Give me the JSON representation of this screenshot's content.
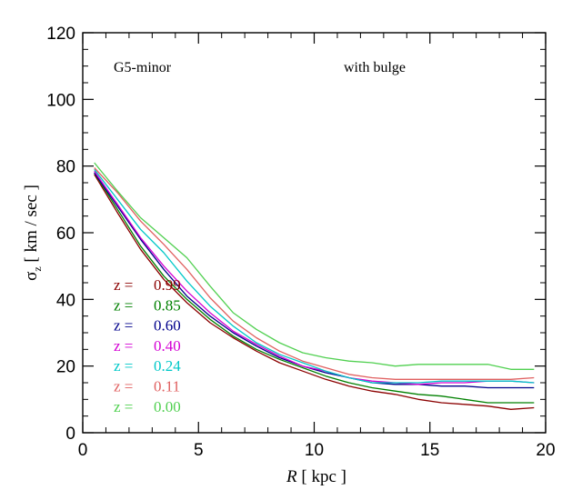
{
  "chart_data": {
    "type": "line",
    "title": "",
    "xlabel": "R [ kpc ]",
    "xlabel_italic_part": "R",
    "xlabel_rest": " [ kpc ]",
    "ylabel": "σz [ km / sec ]",
    "ylabel_symbol": "σ",
    "ylabel_subscript": "z",
    "ylabel_rest": " [ km / sec ]",
    "xlim": [
      0,
      20
    ],
    "ylim": [
      0,
      120
    ],
    "xticks": [
      0,
      5,
      10,
      15,
      20
    ],
    "yticks": [
      0,
      20,
      40,
      60,
      80,
      100,
      120
    ],
    "grid": false,
    "legend_placement": "lower-left",
    "annotations": [
      {
        "id": "model",
        "text": "G5-minor"
      },
      {
        "id": "variant",
        "text": "with bulge"
      }
    ],
    "x": [
      0.5,
      1.5,
      2.5,
      3.5,
      4.5,
      5.5,
      6.5,
      7.5,
      8.5,
      9.5,
      10.5,
      11.5,
      12.5,
      13.5,
      14.5,
      15.5,
      16.5,
      17.5,
      18.5,
      19.5
    ],
    "series": [
      {
        "name": "z = 0.99",
        "label_prefix": "z =",
        "label_value": "0.99",
        "color": "#8b0000",
        "values": [
          77.5,
          66,
          55,
          46,
          39,
          33,
          28.5,
          24.5,
          21,
          18.5,
          16,
          14,
          12.5,
          11.5,
          10,
          9,
          8.5,
          8,
          7,
          7.5
        ]
      },
      {
        "name": "z = 0.85",
        "label_prefix": "z =",
        "label_value": "0.85",
        "color": "#008000",
        "values": [
          78,
          67,
          56,
          47,
          40,
          34,
          29,
          25,
          22,
          19.5,
          17,
          15,
          13.5,
          12.5,
          11.5,
          11,
          10,
          9,
          9,
          9
        ]
      },
      {
        "name": "z = 0.60",
        "label_prefix": "z =",
        "label_value": "0.60",
        "color": "#00008b",
        "values": [
          78,
          68,
          58,
          49,
          41,
          35,
          30,
          26,
          22.5,
          20,
          18,
          16.5,
          15,
          14.5,
          14.5,
          14,
          14,
          13.5,
          13.5,
          13.5
        ]
      },
      {
        "name": "z = 0.40",
        "label_prefix": "z =",
        "label_value": "0.40",
        "color": "#d400d4",
        "values": [
          78.5,
          68.5,
          58.5,
          50,
          42.5,
          36,
          30.5,
          26.5,
          23,
          20,
          18.5,
          16.5,
          15.5,
          15,
          14.5,
          15,
          15,
          15.5,
          15.5,
          15
        ]
      },
      {
        "name": "z = 0.24",
        "label_prefix": "z =",
        "label_value": "0.24",
        "color": "#00c8c8",
        "values": [
          79,
          70,
          61,
          54,
          45.5,
          38,
          32,
          27,
          23.5,
          21,
          18.5,
          16.5,
          15,
          15,
          15,
          15.5,
          15.5,
          15.5,
          15.5,
          15
        ]
      },
      {
        "name": "z = 0.11",
        "label_prefix": "z =",
        "label_value": "0.11",
        "color": "#e06060",
        "values": [
          79.5,
          72,
          63.5,
          56.5,
          49,
          40.5,
          33.5,
          28.5,
          24.5,
          21.5,
          19.5,
          17.5,
          16.5,
          16,
          16,
          16,
          16,
          16,
          16,
          16.5
        ]
      },
      {
        "name": "z = 0.00",
        "label_prefix": "z =",
        "label_value": "0.00",
        "color": "#50d050",
        "values": [
          81,
          72.5,
          64.5,
          58.5,
          52.5,
          44,
          36,
          31,
          27,
          24,
          22.5,
          21.5,
          21,
          20,
          20.5,
          20.5,
          20.5,
          20.5,
          19,
          19
        ]
      }
    ]
  }
}
